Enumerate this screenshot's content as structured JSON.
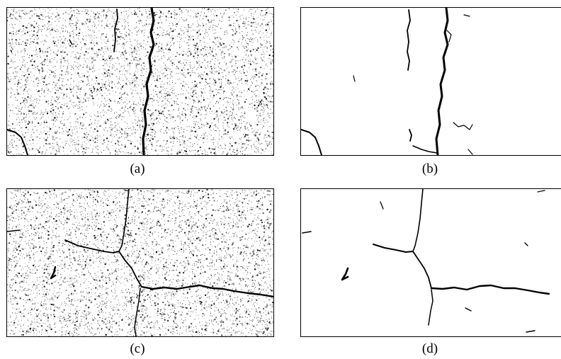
{
  "panels": [
    {
      "id": "a",
      "caption": "(a)",
      "kind": "noisy-binary-crack"
    },
    {
      "id": "b",
      "caption": "(b)",
      "kind": "segmented-crack"
    },
    {
      "id": "c",
      "caption": "(c)",
      "kind": "noisy-binary-crack"
    },
    {
      "id": "d",
      "caption": "(d)",
      "kind": "segmented-crack"
    }
  ]
}
